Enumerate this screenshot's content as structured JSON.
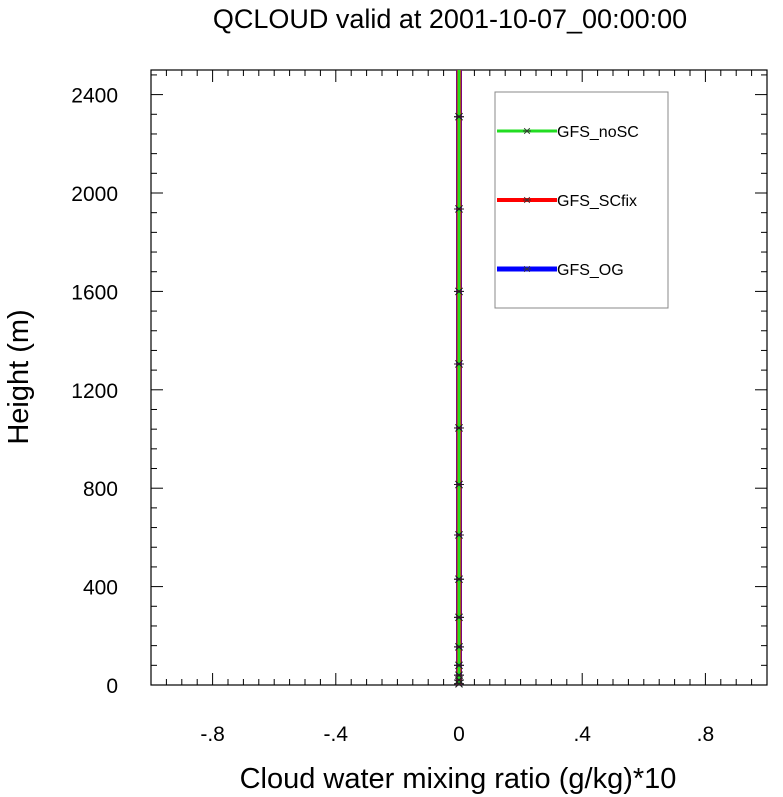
{
  "chart_data": {
    "type": "line",
    "title": "QCLOUD valid at 2001-10-07_00:00:00",
    "xlabel": "Cloud water mixing ratio (g/kg)*10",
    "ylabel": "Height (m)",
    "xlim": [
      -1,
      1
    ],
    "ylim": [
      0,
      2500
    ],
    "x_ticks": [
      -0.8,
      -0.4,
      0,
      0.4,
      0.8
    ],
    "x_tick_labels": [
      "-.8",
      "-.4",
      "0",
      ".4",
      ".8"
    ],
    "y_ticks": [
      0,
      400,
      800,
      1200,
      1600,
      2000,
      2400
    ],
    "y_tick_labels": [
      "0",
      "400",
      "800",
      "1200",
      "1600",
      "2000",
      "2400"
    ],
    "heights": [
      5,
      20,
      40,
      80,
      155,
      275,
      430,
      610,
      815,
      1045,
      1305,
      1600,
      1935,
      2310
    ],
    "series": [
      {
        "name": "GFS_OG",
        "color": "#0000ff",
        "values": [
          0,
          0,
          0,
          0,
          0,
          0,
          0,
          0,
          0,
          0,
          0,
          0,
          0,
          0
        ]
      },
      {
        "name": "GFS_SCfix",
        "color": "#ff0000",
        "values": [
          0,
          0,
          0,
          0,
          0,
          0,
          0,
          0,
          0,
          0,
          0,
          0,
          0,
          0
        ]
      },
      {
        "name": "GFS_noSC",
        "color": "#22dd22",
        "values": [
          0,
          0,
          0,
          0,
          0,
          0,
          0,
          0,
          0,
          0,
          0,
          0,
          0,
          0
        ]
      }
    ],
    "legend_order": [
      "GFS_noSC",
      "GFS_SCfix",
      "GFS_OG"
    ],
    "legend_position": "top-right",
    "marker": "asterisk",
    "grid": false
  }
}
